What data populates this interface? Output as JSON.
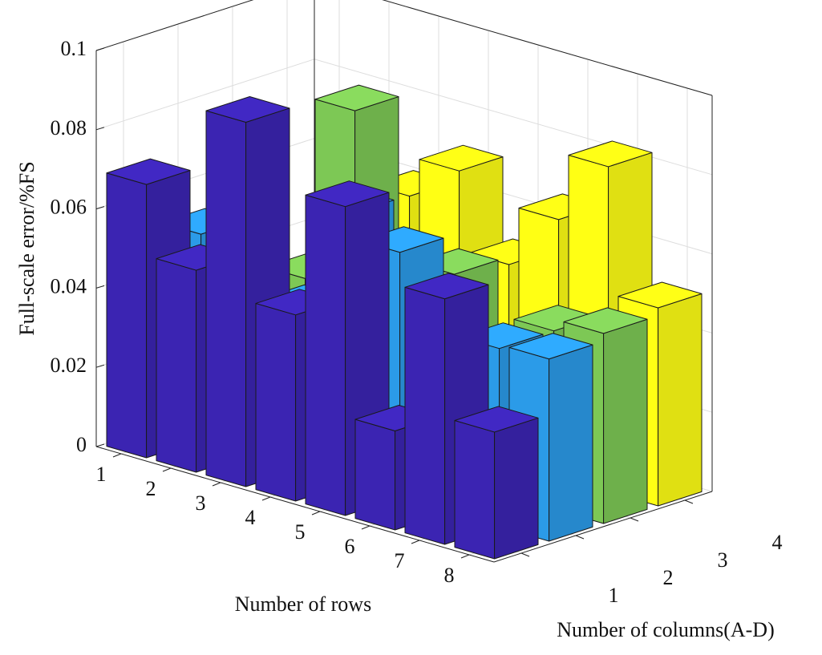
{
  "chart_data": {
    "type": "bar3d",
    "x_label": "Number of rows",
    "y_label": "Number of columns(A-D)",
    "z_label": "Full-scale error/%FS",
    "categories": [
      "1",
      "2",
      "3",
      "4",
      "5",
      "6",
      "7",
      "8"
    ],
    "columns": [
      "1",
      "2",
      "3",
      "4"
    ],
    "series": [
      {
        "color": "#3b24b2",
        "values": [
          0.069,
          0.051,
          0.092,
          0.047,
          0.078,
          0.025,
          0.062,
          0.032
        ]
      },
      {
        "color": "#2b9be8",
        "values": [
          0.052,
          0.03,
          0.04,
          0.068,
          0.062,
          0.04,
          0.045,
          0.046
        ]
      },
      {
        "color": "#7dc855",
        "values": [
          0.03,
          0.04,
          0.086,
          0.04,
          0.052,
          0.035,
          0.045,
          0.048
        ]
      },
      {
        "color": "#ffff14",
        "values": [
          0.03,
          0.03,
          0.06,
          0.07,
          0.05,
          0.065,
          0.082,
          0.05
        ]
      }
    ],
    "zlim": [
      0,
      0.1
    ],
    "zticks": [
      0,
      0.02,
      0.04,
      0.06,
      0.08,
      0.1
    ],
    "grid": true
  }
}
